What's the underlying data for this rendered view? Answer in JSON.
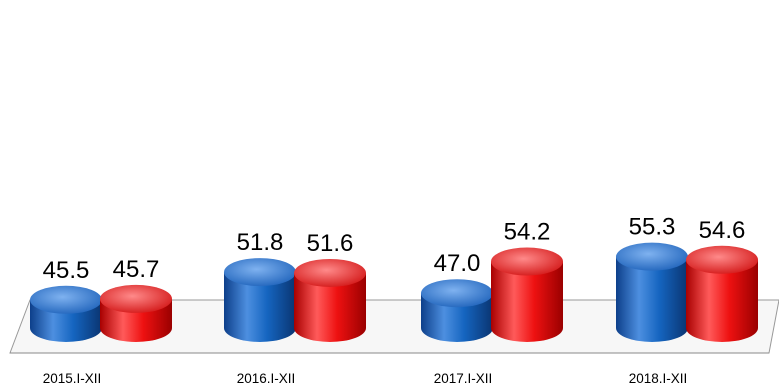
{
  "chart_data": {
    "type": "bar",
    "style": "3d-cylinder",
    "categories": [
      "2015.I-XII",
      "2016.I-XII",
      "2017.I-XII",
      "2018.I-XII"
    ],
    "series": [
      {
        "color": "#1565c0",
        "values": [
          45.5,
          51.8,
          47.0,
          55.3
        ],
        "labels": [
          "45.5",
          "51.8",
          "47.0",
          "55.3"
        ]
      },
      {
        "color": "#ee1111",
        "values": [
          45.7,
          51.6,
          54.2,
          54.6
        ],
        "labels": [
          "45.7",
          "51.6",
          "54.2",
          "54.6"
        ]
      }
    ],
    "grid": false,
    "legend": "none"
  }
}
